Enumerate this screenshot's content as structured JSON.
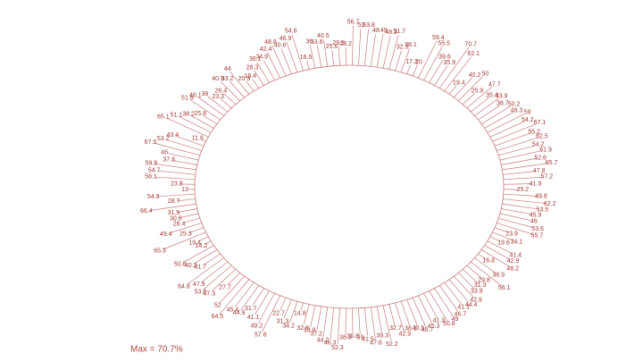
{
  "chart_data": {
    "type": "radial_bar",
    "annotation": "Max = 70.7%",
    "color": "#c97a7a",
    "label_color": "#a33a35",
    "values": [
      56.7,
      53,
      53.8,
      48,
      49,
      48.3,
      51.7,
      32.5,
      38.1,
      17.2,
      20,
      59.4,
      55.5,
      39.6,
      35.9,
      70.7,
      62.1,
      19.4,
      40.2,
      50,
      25.9,
      47.7,
      35.4,
      43.9,
      38.7,
      50.2,
      48.3,
      59,
      54.2,
      67.1,
      55.2,
      62.5,
      54.2,
      61.9,
      52.6,
      65.7,
      47.8,
      57.2,
      41.9,
      25.2,
      49.8,
      62.2,
      53.5,
      45.9,
      46,
      53.6,
      55.7,
      23.9,
      34.1,
      19.6,
      41.4,
      42.9,
      48.2,
      16.8,
      38.9,
      56.1,
      29.8,
      31.3,
      33.9,
      42.9,
      44.4,
      41.1,
      46.7,
      49,
      50.8,
      41.3,
      45.3,
      46.7,
      40.5,
      38.1,
      42.9,
      32.7,
      52.2,
      39.3,
      47.6,
      41.5,
      39,
      36.8,
      38.3,
      52.3,
      46.3,
      44.2,
      37.2,
      33.8,
      32.8,
      14.8,
      34.2,
      31.3,
      22.7,
      57.6,
      49.2,
      41.1,
      31.7,
      44.9,
      45.4,
      64.5,
      52,
      27.7,
      47.3,
      53.8,
      47.9,
      64.8,
      31.7,
      40.2,
      50.8,
      14.2,
      19.4,
      65.3,
      25.3,
      49.4,
      28.4,
      30.6,
      31.5,
      66.4,
      28.7,
      54.9,
      13,
      23.8,
      58.1,
      54.7,
      59.8,
      37.8,
      46,
      67.5,
      53.2,
      43.4,
      11.6,
      65.1,
      51.1,
      38.2,
      25.8,
      51.9,
      46.1,
      38,
      23.3,
      26.4,
      40.9,
      33.2,
      44,
      20.9,
      19.4,
      28.3,
      36.1,
      34.9,
      42.4,
      48.8,
      40.6,
      46.9,
      54.6,
      16.5,
      36,
      33.6,
      40.5,
      25.6,
      29.5,
      28.2
    ]
  }
}
